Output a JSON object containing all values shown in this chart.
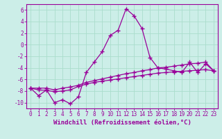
{
  "xlabel": "Windchill (Refroidissement éolien,°C)",
  "ylabel": "",
  "bg_color": "#cceee8",
  "line_color": "#990099",
  "grid_color": "#aaddcc",
  "x": [
    0,
    1,
    2,
    3,
    4,
    5,
    6,
    7,
    8,
    9,
    10,
    11,
    12,
    13,
    14,
    15,
    16,
    17,
    18,
    19,
    20,
    21,
    22,
    23
  ],
  "line1": [
    -7.5,
    -8.8,
    -7.8,
    -10.0,
    -9.5,
    -10.2,
    -9.0,
    -4.8,
    -3.0,
    -1.2,
    1.6,
    2.5,
    6.2,
    5.0,
    2.8,
    -2.2,
    -4.0,
    -4.2,
    -4.5,
    -4.8,
    -3.0,
    -4.8,
    -3.3,
    -4.5
  ],
  "line2": [
    -7.5,
    -7.8,
    -7.9,
    -8.1,
    -8.0,
    -7.8,
    -7.2,
    -6.8,
    -6.5,
    -6.3,
    -6.1,
    -5.9,
    -5.7,
    -5.5,
    -5.3,
    -5.1,
    -4.9,
    -4.8,
    -4.7,
    -4.6,
    -4.5,
    -4.4,
    -4.3,
    -4.5
  ],
  "line3": [
    -7.5,
    -7.5,
    -7.5,
    -7.8,
    -7.5,
    -7.3,
    -7.0,
    -6.5,
    -6.2,
    -5.9,
    -5.6,
    -5.3,
    -5.0,
    -4.8,
    -4.5,
    -4.3,
    -4.0,
    -3.9,
    -3.7,
    -3.5,
    -3.3,
    -3.2,
    -3.0,
    -4.5
  ],
  "ylim": [
    -11,
    7
  ],
  "xlim": [
    -0.5,
    23.5
  ],
  "yticks": [
    -10,
    -8,
    -6,
    -4,
    -2,
    0,
    2,
    4,
    6
  ],
  "xtick_labels": [
    "0",
    "1",
    "2",
    "3",
    "4",
    "5",
    "6",
    "7",
    "8",
    "9",
    "10",
    "11",
    "12",
    "13",
    "14",
    "15",
    "16",
    "17",
    "18",
    "19",
    "20",
    "21",
    "22",
    "23"
  ],
  "marker": "+",
  "markersize": 4,
  "linewidth": 0.9,
  "xlabel_fontsize": 6.5,
  "tick_fontsize": 5.5
}
